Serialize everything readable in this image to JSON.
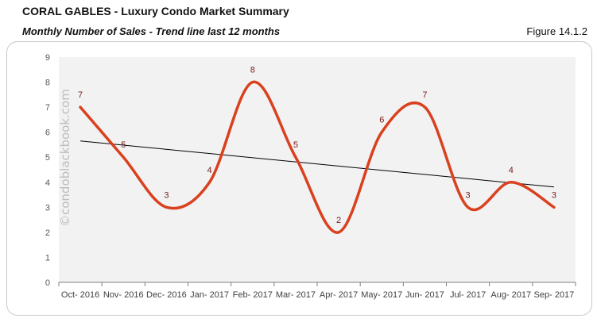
{
  "header": {
    "title": "CORAL GABLES - Luxury Condo Market Summary",
    "subtitle": "Monthly Number of Sales - Trend line last 12 months",
    "figure_label": "Figure 14.1.2"
  },
  "watermark": "©condoblackbook.com",
  "colors": {
    "series_line": "#d9411e",
    "trend_line": "#000000",
    "plot_background": "#f2f2f2",
    "data_label": "#7b1a1a"
  },
  "chart_data": {
    "type": "line",
    "title": "Monthly Number of Sales - Trend line last 12 months",
    "xlabel": "",
    "ylabel": "",
    "categories": [
      "Oct- 2016",
      "Nov- 2016",
      "Dec- 2016",
      "Jan- 2017",
      "Feb- 2017",
      "Mar- 2017",
      "Apr- 2017",
      "May- 2017",
      "Jun- 2017",
      "Jul- 2017",
      "Aug- 2017",
      "Sep- 2017"
    ],
    "series": [
      {
        "name": "Number of Sales",
        "values": [
          7,
          5,
          3,
          4,
          8,
          5,
          2,
          6,
          7,
          3,
          4,
          3
        ],
        "smoothed": true,
        "data_labels": true
      },
      {
        "name": "Linear trend",
        "values": [
          5.65,
          5.48,
          5.31,
          5.14,
          4.97,
          4.8,
          4.63,
          4.46,
          4.29,
          4.12,
          3.95,
          3.81
        ],
        "type": "trendline"
      }
    ],
    "yticks": [
      "0",
      "1",
      "2",
      "3",
      "4",
      "5",
      "6",
      "7",
      "8",
      "9"
    ],
    "ylim": [
      0,
      9
    ],
    "grid": false,
    "legend": "none"
  }
}
